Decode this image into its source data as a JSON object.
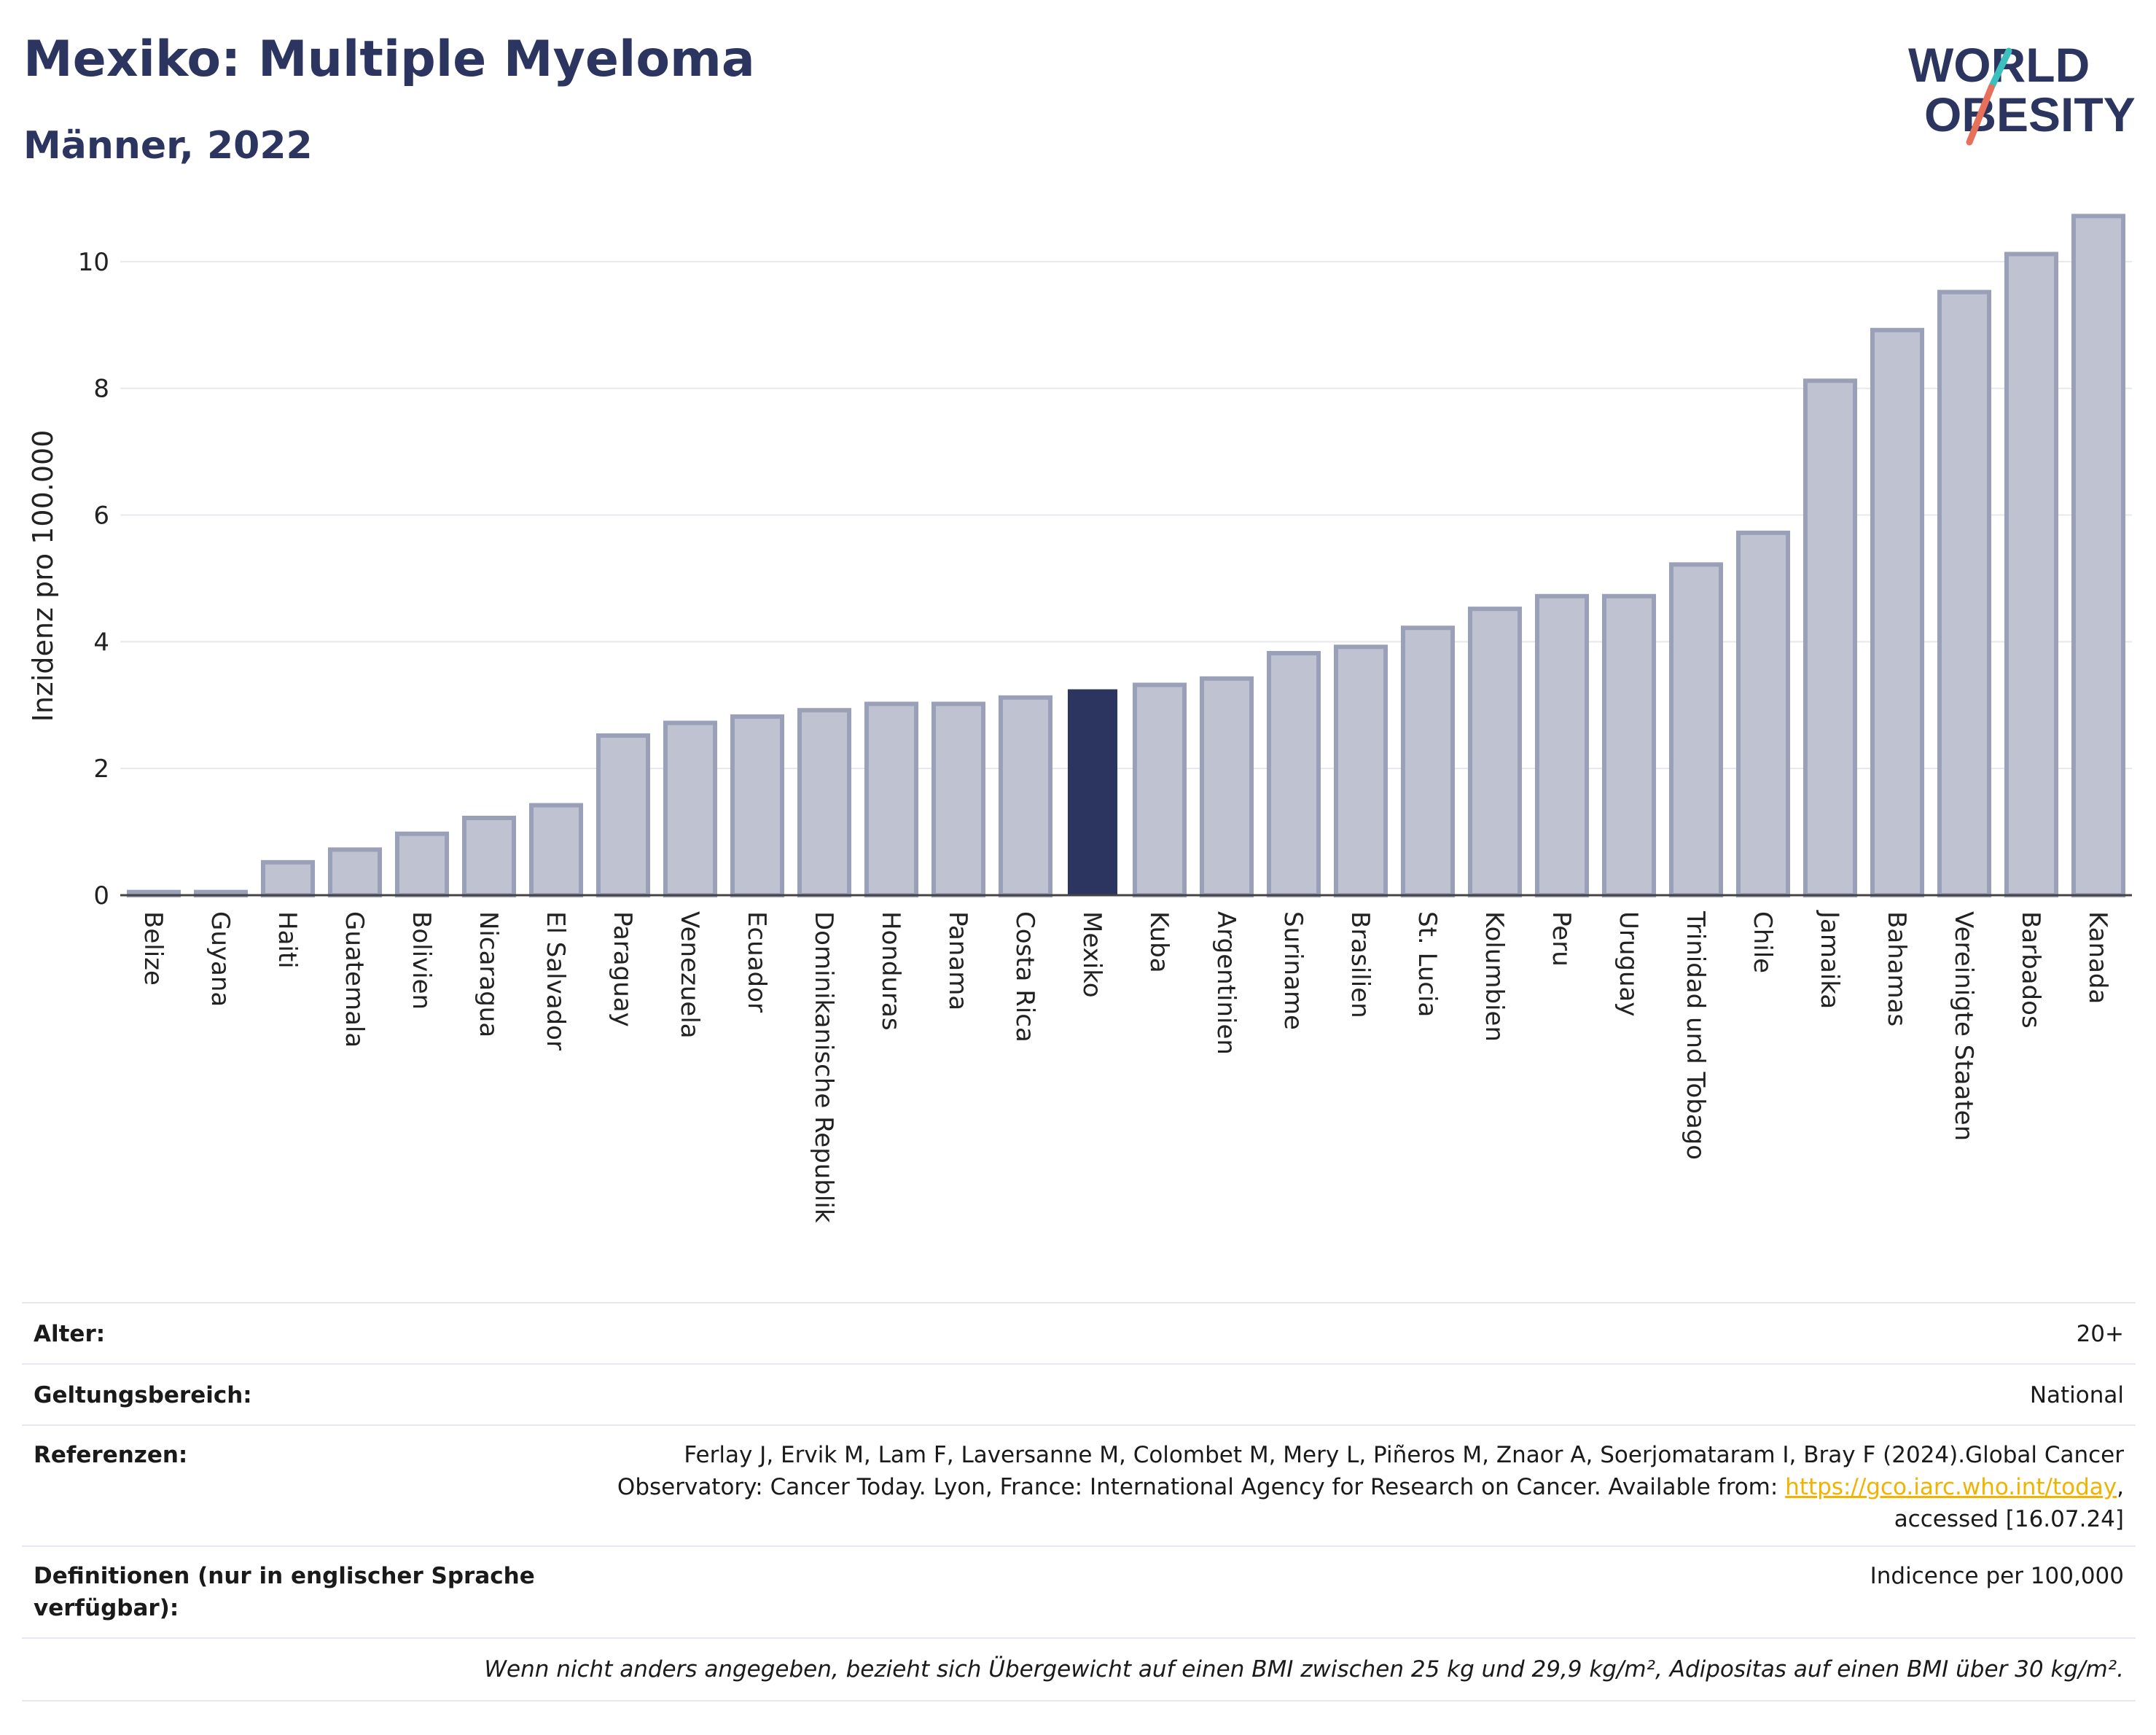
{
  "header": {
    "title": "Mexiko: Multiple Myeloma",
    "subtitle": "Männer, 2022"
  },
  "logo": {
    "line1": "WORLD",
    "line2": "OBESITY",
    "text_color": "#2b3560",
    "slash_colors": [
      "#e8705a",
      "#3bbfbf"
    ]
  },
  "chart_data": {
    "type": "bar",
    "ylabel": "Inzidenz pro 100.000",
    "ylim": [
      0,
      11
    ],
    "yticks": [
      0,
      2,
      4,
      6,
      8,
      10
    ],
    "grid": true,
    "highlight": "Mexiko",
    "colors": {
      "bar": "#bfc2d0",
      "bar_edge": "#9aa0b8",
      "highlight": "#2b3560"
    },
    "categories": [
      "Belize",
      "Guyana",
      "Haiti",
      "Guatemala",
      "Bolivien",
      "Nicaragua",
      "El Salvador",
      "Paraguay",
      "Venezuela",
      "Ecuador",
      "Dominikanische Republik",
      "Honduras",
      "Panama",
      "Costa Rica",
      "Mexiko",
      "Kuba",
      "Argentinien",
      "Suriname",
      "Brasilien",
      "St. Lucia",
      "Kolumbien",
      "Peru",
      "Uruguay",
      "Trinidad und Tobago",
      "Chile",
      "Jamaika",
      "Bahamas",
      "Vereinigte Staaten",
      "Barbados",
      "Kanada"
    ],
    "values": [
      0.05,
      0.05,
      0.52,
      0.72,
      0.97,
      1.22,
      1.42,
      2.52,
      2.72,
      2.82,
      2.92,
      3.02,
      3.02,
      3.12,
      3.25,
      3.32,
      3.42,
      3.82,
      3.92,
      4.22,
      4.52,
      4.72,
      4.72,
      5.22,
      5.72,
      8.12,
      8.92,
      9.52,
      10.12,
      10.72
    ]
  },
  "meta": {
    "age_label": "Alter:",
    "age_value": "20+",
    "scope_label": "Geltungsbereich:",
    "scope_value": "National",
    "ref_label": "Referenzen:",
    "ref_line1": "Ferlay J, Ervik M, Lam F, Laversanne M, Colombet M, Mery L, Piñeros M, Znaor A, Soerjomataram I, Bray F (2024).Global Cancer",
    "ref_line2_pre": "Observatory: Cancer Today. Lyon, France: International Agency for Research on Cancer. Available from: ",
    "ref_link": "https://gco.iarc.who.int/today",
    "ref_line2_post": ",",
    "ref_line3": "accessed [16.07.24]",
    "def_label": "Definitionen (nur in englischer Sprache verfügbar):",
    "def_value": "Indicence per 100,000",
    "note": "Wenn nicht anders angegeben, bezieht sich Übergewicht auf einen BMI zwischen 25 kg und 29,9 kg/m², Adipositas auf einen BMI über 30 kg/m²."
  }
}
